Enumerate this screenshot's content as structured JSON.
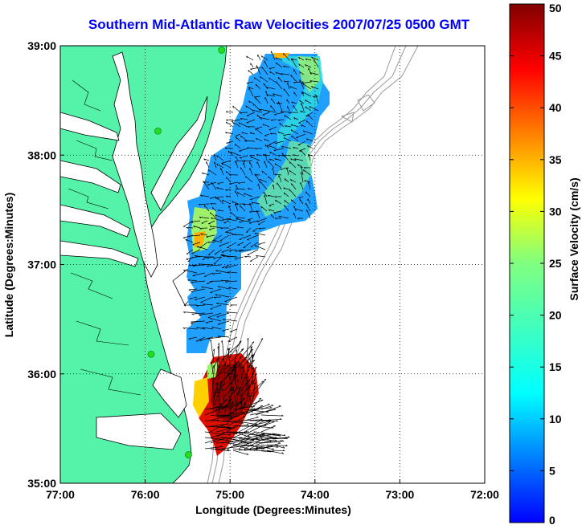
{
  "title": "Southern Mid-Atlantic Raw Velocities 2007/07/25 0500 GMT",
  "map": {
    "x_axis": {
      "label": "Longitude (Degrees:Minutes)",
      "range": [
        -77,
        -72
      ],
      "ticks": [
        {
          "value": -77,
          "label": "77:00"
        },
        {
          "value": -76,
          "label": "76:00"
        },
        {
          "value": -75,
          "label": "75:00"
        },
        {
          "value": -74,
          "label": "74:00"
        },
        {
          "value": -73,
          "label": "73:00"
        },
        {
          "value": -72,
          "label": "72:00"
        }
      ]
    },
    "y_axis": {
      "label": "Latitude (Degrees:Minutes)",
      "range": [
        35,
        39
      ],
      "ticks": [
        {
          "value": 39,
          "label": "39:00"
        },
        {
          "value": 38,
          "label": "38:00"
        },
        {
          "value": 37,
          "label": "37:00"
        },
        {
          "value": 36,
          "label": "36:00"
        },
        {
          "value": 35,
          "label": "35:00"
        }
      ]
    },
    "grid": "dotted",
    "colors": {
      "land": "#55f2a9",
      "coast": "#000000",
      "bathymetry": "#999999",
      "radar_site": "#22dd22"
    },
    "radar_sites": [
      {
        "lon": -75.1,
        "lat": 38.96
      },
      {
        "lon": -75.85,
        "lat": 38.22
      },
      {
        "lon": -75.93,
        "lat": 36.18
      },
      {
        "lon": -75.49,
        "lat": 35.26
      }
    ]
  },
  "colorbar": {
    "label": "Surface Velocity (cm/s)",
    "range": [
      0,
      50
    ],
    "ticks": [
      0,
      5,
      10,
      15,
      20,
      25,
      30,
      35,
      40,
      45,
      50
    ],
    "colormap": "jet"
  }
}
